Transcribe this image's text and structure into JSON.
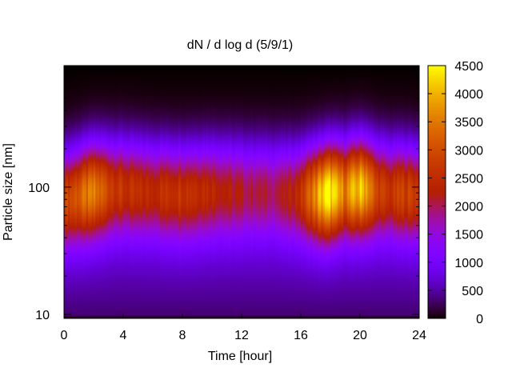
{
  "chart_data": {
    "type": "heatmap",
    "title": "dN / d log d (5/9/1)",
    "xlabel": "Time [hour]",
    "ylabel": "Particle size [nm]",
    "xlim": [
      0,
      24
    ],
    "x_ticks": [
      0,
      4,
      8,
      12,
      16,
      20,
      24
    ],
    "x_tick_labels": [
      "0",
      "4",
      "8",
      "12",
      "16",
      "20",
      "24"
    ],
    "y_scale": "log",
    "ylim": [
      9.3,
      900
    ],
    "y_ticks": [
      10,
      100
    ],
    "y_tick_labels": [
      "10",
      "100"
    ],
    "colorbar": {
      "range": [
        0,
        4500
      ],
      "ticks": [
        0,
        500,
        1000,
        1500,
        2000,
        2500,
        3000,
        3500,
        4000,
        4500
      ],
      "tick_labels": [
        "0",
        "500",
        "1000",
        "1500",
        "2000",
        "2500",
        "3000",
        "3500",
        "4000",
        "4500"
      ],
      "colormap": "gnuplot-pm3d (black-purple-red-yellow)"
    },
    "grid": false,
    "mode_diameter_nm": [
      [
        0,
        80
      ],
      [
        2,
        95
      ],
      [
        4,
        100
      ],
      [
        6,
        95
      ],
      [
        8,
        90
      ],
      [
        10,
        95
      ],
      [
        12,
        95
      ],
      [
        14,
        95
      ],
      [
        16,
        90
      ],
      [
        17.5,
        90
      ],
      [
        18.5,
        95
      ],
      [
        20,
        100
      ],
      [
        22,
        95
      ],
      [
        24,
        90
      ]
    ],
    "peak_concentration": [
      [
        0,
        2500
      ],
      [
        1,
        2900
      ],
      [
        2,
        3200
      ],
      [
        3,
        2700
      ],
      [
        4,
        2300
      ],
      [
        5,
        2200
      ],
      [
        6,
        2200
      ],
      [
        7,
        2300
      ],
      [
        8,
        2400
      ],
      [
        9,
        2300
      ],
      [
        10,
        2200
      ],
      [
        11,
        2000
      ],
      [
        12,
        1850
      ],
      [
        13,
        1800
      ],
      [
        14,
        1750
      ],
      [
        15,
        1900
      ],
      [
        16,
        2300
      ],
      [
        17,
        3400
      ],
      [
        17.5,
        4000
      ],
      [
        18,
        4200
      ],
      [
        18.5,
        3600
      ],
      [
        19,
        3300
      ],
      [
        19.5,
        3600
      ],
      [
        20,
        3900
      ],
      [
        20.5,
        3700
      ],
      [
        21,
        2700
      ],
      [
        22,
        2300
      ],
      [
        23,
        2600
      ],
      [
        24,
        2400
      ]
    ]
  }
}
